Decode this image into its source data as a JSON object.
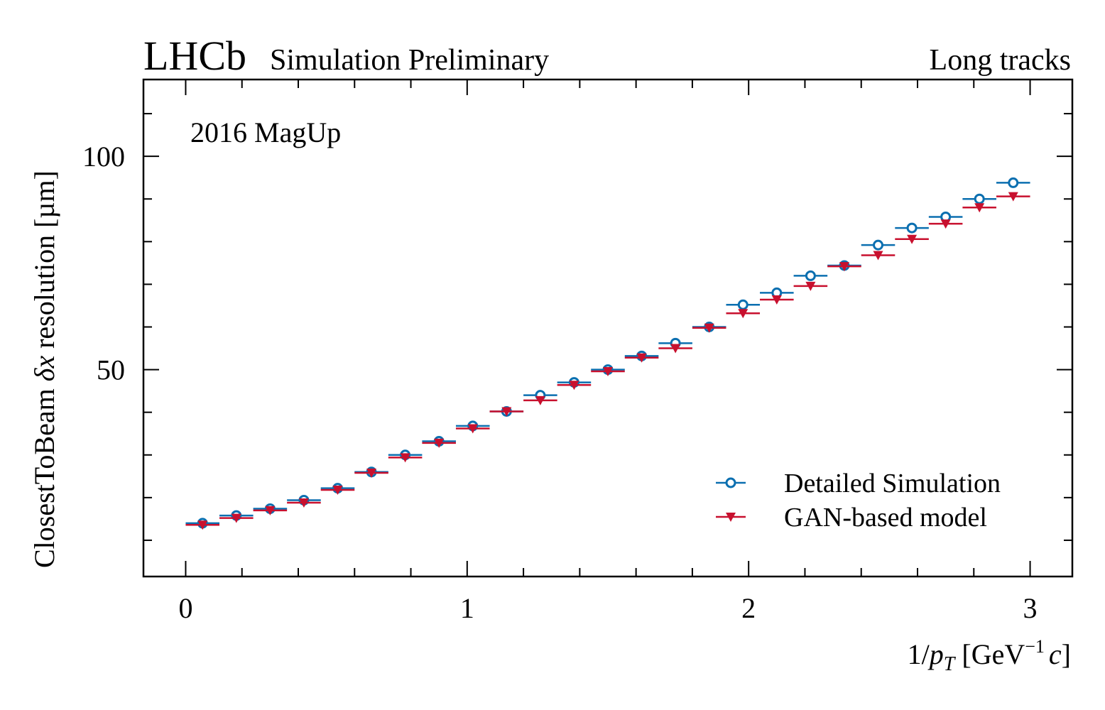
{
  "header": {
    "experiment": "LHCb",
    "status": "Simulation Preliminary",
    "selection": "Long tracks"
  },
  "chart_data": {
    "type": "scatter",
    "title": "",
    "annotation": "2016 MagUp",
    "xlabel": "1/p_T [GeV^-1 c]",
    "xlabel_parts": {
      "prefix": "1/",
      "var": "p",
      "sub": "T",
      "unit_open": " [GeV",
      "sup": "−1",
      "unit_c": "c",
      "unit_close": "]"
    },
    "ylabel": "ClosestToBeam δx resolution [µm]",
    "ylabel_parts": {
      "prefix": "ClosestToBeam ",
      "var": "δx",
      "suffix": " resolution [µm]"
    },
    "xlim": [
      -0.15,
      3.15
    ],
    "ylim": [
      1.5,
      118
    ],
    "x_major_ticks": [
      0,
      1,
      2,
      3
    ],
    "x_tick_labels": [
      "0",
      "1",
      "2",
      "3"
    ],
    "x_minor_step": 0.2,
    "y_major_ticks": [
      50,
      100
    ],
    "y_tick_labels": [
      "50",
      "100"
    ],
    "y_minor_step": 10,
    "x": [
      0.06,
      0.18,
      0.3,
      0.42,
      0.54,
      0.66,
      0.78,
      0.9,
      1.02,
      1.14,
      1.26,
      1.38,
      1.5,
      1.62,
      1.74,
      1.86,
      1.98,
      2.1,
      2.22,
      2.34,
      2.46,
      2.58,
      2.7,
      2.82,
      2.94
    ],
    "x_bin_halfwidth": 0.06,
    "series": [
      {
        "name": "Detailed Simulation",
        "marker": "open-circle",
        "color": "#0b6fb0",
        "values": [
          14.0,
          15.8,
          17.4,
          19.4,
          22.2,
          26.0,
          30.0,
          33.2,
          36.8,
          40.2,
          44.0,
          47.0,
          50.0,
          53.2,
          56.2,
          60.0,
          65.2,
          68.0,
          72.0,
          74.4,
          79.2,
          83.2,
          85.8,
          90.0,
          93.8
        ]
      },
      {
        "name": "GAN-based model",
        "marker": "filled-triangle-down",
        "color": "#c8102e",
        "values": [
          13.6,
          15.2,
          17.0,
          18.8,
          21.8,
          25.8,
          29.4,
          32.8,
          36.2,
          40.2,
          42.8,
          46.4,
          49.6,
          52.8,
          55.0,
          59.8,
          63.2,
          66.4,
          69.6,
          74.2,
          76.8,
          80.6,
          84.2,
          88.0,
          90.6
        ]
      }
    ],
    "legend_position": "lower-right",
    "grid": false
  }
}
